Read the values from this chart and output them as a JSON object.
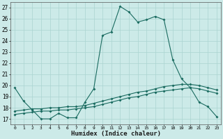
{
  "xlabel": "Humidex (Indice chaleur)",
  "background_color": "#cceae8",
  "grid_color": "#aad4d0",
  "line_color": "#1a6b60",
  "xlim": [
    -0.5,
    23.5
  ],
  "ylim": [
    16.5,
    27.5
  ],
  "xticks": [
    0,
    1,
    2,
    3,
    4,
    5,
    6,
    7,
    8,
    9,
    10,
    11,
    12,
    13,
    14,
    15,
    16,
    17,
    18,
    19,
    20,
    21,
    22,
    23
  ],
  "yticks": [
    17,
    18,
    19,
    20,
    21,
    22,
    23,
    24,
    25,
    26,
    27
  ],
  "line1_x": [
    0,
    1,
    2,
    3,
    4,
    5,
    6,
    7,
    8,
    9,
    10,
    11,
    12,
    13,
    14,
    15,
    16,
    17,
    18,
    19,
    20,
    21,
    22,
    23
  ],
  "line1_y": [
    19.8,
    18.6,
    17.8,
    17.0,
    17.0,
    17.5,
    17.1,
    17.1,
    18.5,
    19.7,
    24.5,
    24.8,
    27.1,
    26.6,
    25.7,
    25.9,
    26.2,
    25.9,
    22.3,
    20.6,
    19.8,
    18.5,
    18.1,
    17.2
  ],
  "line2_x": [
    0,
    1,
    2,
    3,
    4,
    5,
    6,
    7,
    8,
    9,
    10,
    11,
    12,
    13,
    14,
    15,
    16,
    17,
    18,
    19,
    20,
    21,
    22,
    23
  ],
  "line2_y": [
    17.7,
    17.8,
    17.9,
    17.9,
    18.0,
    18.0,
    18.1,
    18.1,
    18.2,
    18.4,
    18.6,
    18.8,
    19.0,
    19.2,
    19.4,
    19.5,
    19.7,
    19.9,
    20.0,
    20.1,
    20.1,
    20.0,
    19.8,
    19.6
  ],
  "line3_x": [
    0,
    1,
    2,
    3,
    4,
    5,
    6,
    7,
    8,
    9,
    10,
    11,
    12,
    13,
    14,
    15,
    16,
    17,
    18,
    19,
    20,
    21,
    22,
    23
  ],
  "line3_y": [
    17.4,
    17.5,
    17.6,
    17.7,
    17.7,
    17.8,
    17.8,
    17.9,
    18.0,
    18.1,
    18.3,
    18.5,
    18.7,
    18.9,
    19.0,
    19.2,
    19.4,
    19.5,
    19.6,
    19.7,
    19.8,
    19.7,
    19.5,
    19.3
  ],
  "marker_size": 2.0,
  "line_width": 0.8
}
